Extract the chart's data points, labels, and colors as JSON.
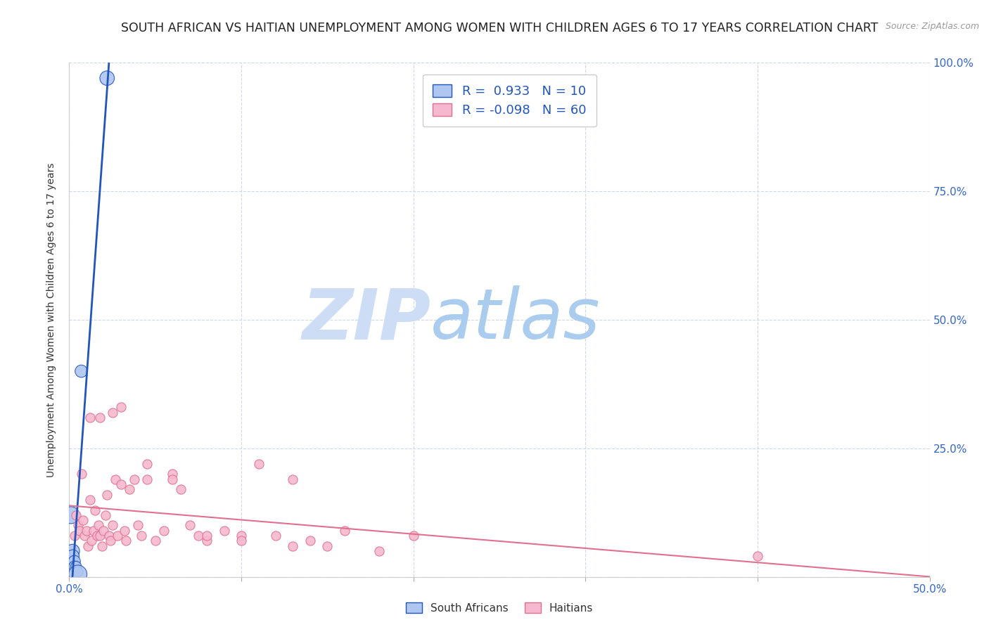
{
  "title": "SOUTH AFRICAN VS HAITIAN UNEMPLOYMENT AMONG WOMEN WITH CHILDREN AGES 6 TO 17 YEARS CORRELATION CHART",
  "source": "Source: ZipAtlas.com",
  "ylabel": "Unemployment Among Women with Children Ages 6 to 17 years",
  "xlim": [
    0.0,
    0.5
  ],
  "ylim": [
    0.0,
    1.0
  ],
  "yticks": [
    0.0,
    0.25,
    0.5,
    0.75,
    1.0
  ],
  "ytick_labels": [
    "",
    "25.0%",
    "50.0%",
    "75.0%",
    "100.0%"
  ],
  "xticks": [
    0.0,
    0.1,
    0.2,
    0.3,
    0.4,
    0.5
  ],
  "xtick_labels": [
    "0.0%",
    "",
    "",
    "",
    "",
    "50.0%"
  ],
  "south_african_color": "#aec6f0",
  "haitian_color": "#f5b8ce",
  "trend_sa_color": "#2255bb",
  "trend_haiti_color": "#e07090",
  "legend_text_color": "#2255bb",
  "watermark_zip_color": "#ccddf5",
  "watermark_atlas_color": "#aaccee",
  "R_sa": 0.933,
  "N_sa": 10,
  "R_haiti": -0.098,
  "N_haiti": 60,
  "south_africans_x": [
    0.001,
    0.002,
    0.002,
    0.003,
    0.003,
    0.004,
    0.005,
    0.005,
    0.007,
    0.022
  ],
  "south_africans_y": [
    0.12,
    0.05,
    0.04,
    0.03,
    0.02,
    0.02,
    0.01,
    0.005,
    0.4,
    0.97
  ],
  "south_africans_size": [
    300,
    200,
    180,
    150,
    130,
    120,
    110,
    350,
    160,
    220
  ],
  "haitians_x": [
    0.003,
    0.004,
    0.005,
    0.006,
    0.007,
    0.008,
    0.009,
    0.01,
    0.011,
    0.012,
    0.013,
    0.014,
    0.015,
    0.016,
    0.017,
    0.018,
    0.019,
    0.02,
    0.021,
    0.022,
    0.023,
    0.024,
    0.025,
    0.027,
    0.028,
    0.03,
    0.032,
    0.033,
    0.035,
    0.038,
    0.04,
    0.042,
    0.045,
    0.05,
    0.055,
    0.06,
    0.065,
    0.07,
    0.075,
    0.08,
    0.09,
    0.1,
    0.11,
    0.12,
    0.13,
    0.14,
    0.15,
    0.16,
    0.18,
    0.2,
    0.012,
    0.018,
    0.025,
    0.03,
    0.045,
    0.06,
    0.08,
    0.1,
    0.13,
    0.4
  ],
  "haitians_y": [
    0.08,
    0.12,
    0.1,
    0.09,
    0.2,
    0.11,
    0.08,
    0.09,
    0.06,
    0.15,
    0.07,
    0.09,
    0.13,
    0.08,
    0.1,
    0.08,
    0.06,
    0.09,
    0.12,
    0.16,
    0.08,
    0.07,
    0.1,
    0.19,
    0.08,
    0.18,
    0.09,
    0.07,
    0.17,
    0.19,
    0.1,
    0.08,
    0.19,
    0.07,
    0.09,
    0.2,
    0.17,
    0.1,
    0.08,
    0.07,
    0.09,
    0.08,
    0.22,
    0.08,
    0.19,
    0.07,
    0.06,
    0.09,
    0.05,
    0.08,
    0.31,
    0.31,
    0.32,
    0.33,
    0.22,
    0.19,
    0.08,
    0.07,
    0.06,
    0.04
  ],
  "haitians_size": 90,
  "background_color": "#ffffff",
  "grid_color": "#d0d8e8",
  "title_fontsize": 12.5,
  "label_fontsize": 10,
  "tick_color": "#3366cc",
  "legend_fontsize": 13,
  "axis_tick_fontsize": 11
}
